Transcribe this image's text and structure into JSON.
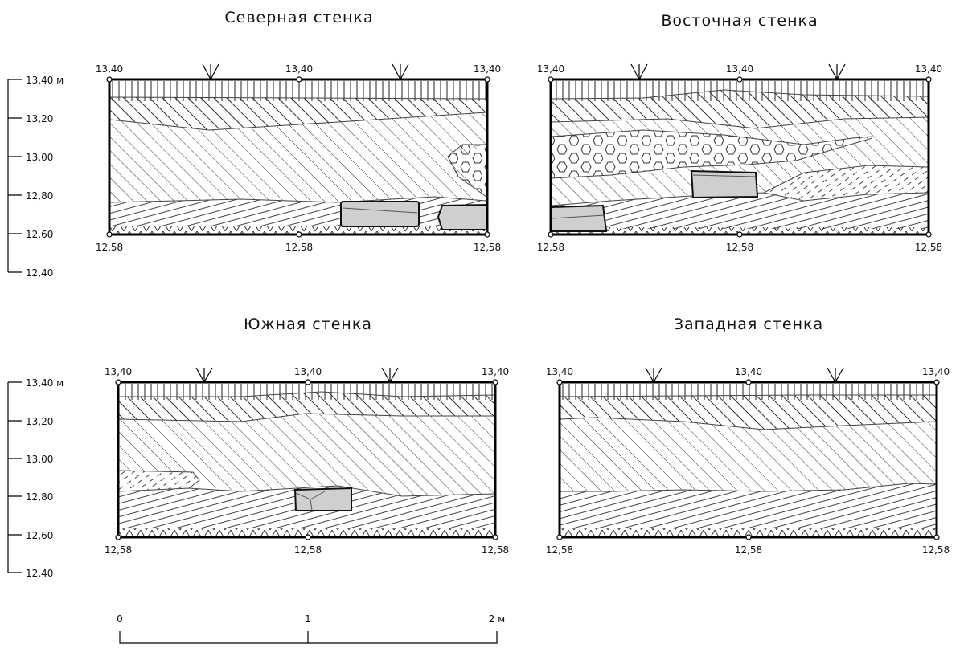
{
  "walls": [
    {
      "id": "north",
      "title": "Северная стенка",
      "top_labels": [
        "13,40",
        "13,40",
        "13,40"
      ],
      "bottom_labels": [
        "12,58",
        "12,58",
        "12,58"
      ]
    },
    {
      "id": "east",
      "title": "Восточная стенка",
      "top_labels": [
        "13,40",
        "13,40",
        "13,40"
      ],
      "bottom_labels": [
        "12,58",
        "12,58",
        "12,58"
      ]
    },
    {
      "id": "south",
      "title": "Южная стенка",
      "top_labels": [
        "13,40",
        "13,40",
        "13,40"
      ],
      "bottom_labels": [
        "12,58",
        "12,58",
        "12,58"
      ]
    },
    {
      "id": "west",
      "title": "Западная стенка",
      "top_labels": [
        "13,40",
        "13,40",
        "13,40"
      ],
      "bottom_labels": [
        "12,58",
        "12,58",
        "12,58"
      ]
    }
  ],
  "elevation_scale": {
    "ticks": [
      "13,40 м",
      "13,20",
      "13,00",
      "12,80",
      "12,60",
      "12,40"
    ]
  },
  "linear_scale": {
    "labels": [
      "0",
      "1",
      "2 м"
    ]
  },
  "colors": {
    "stone": "#cfcfcf",
    "line": "#000000"
  }
}
